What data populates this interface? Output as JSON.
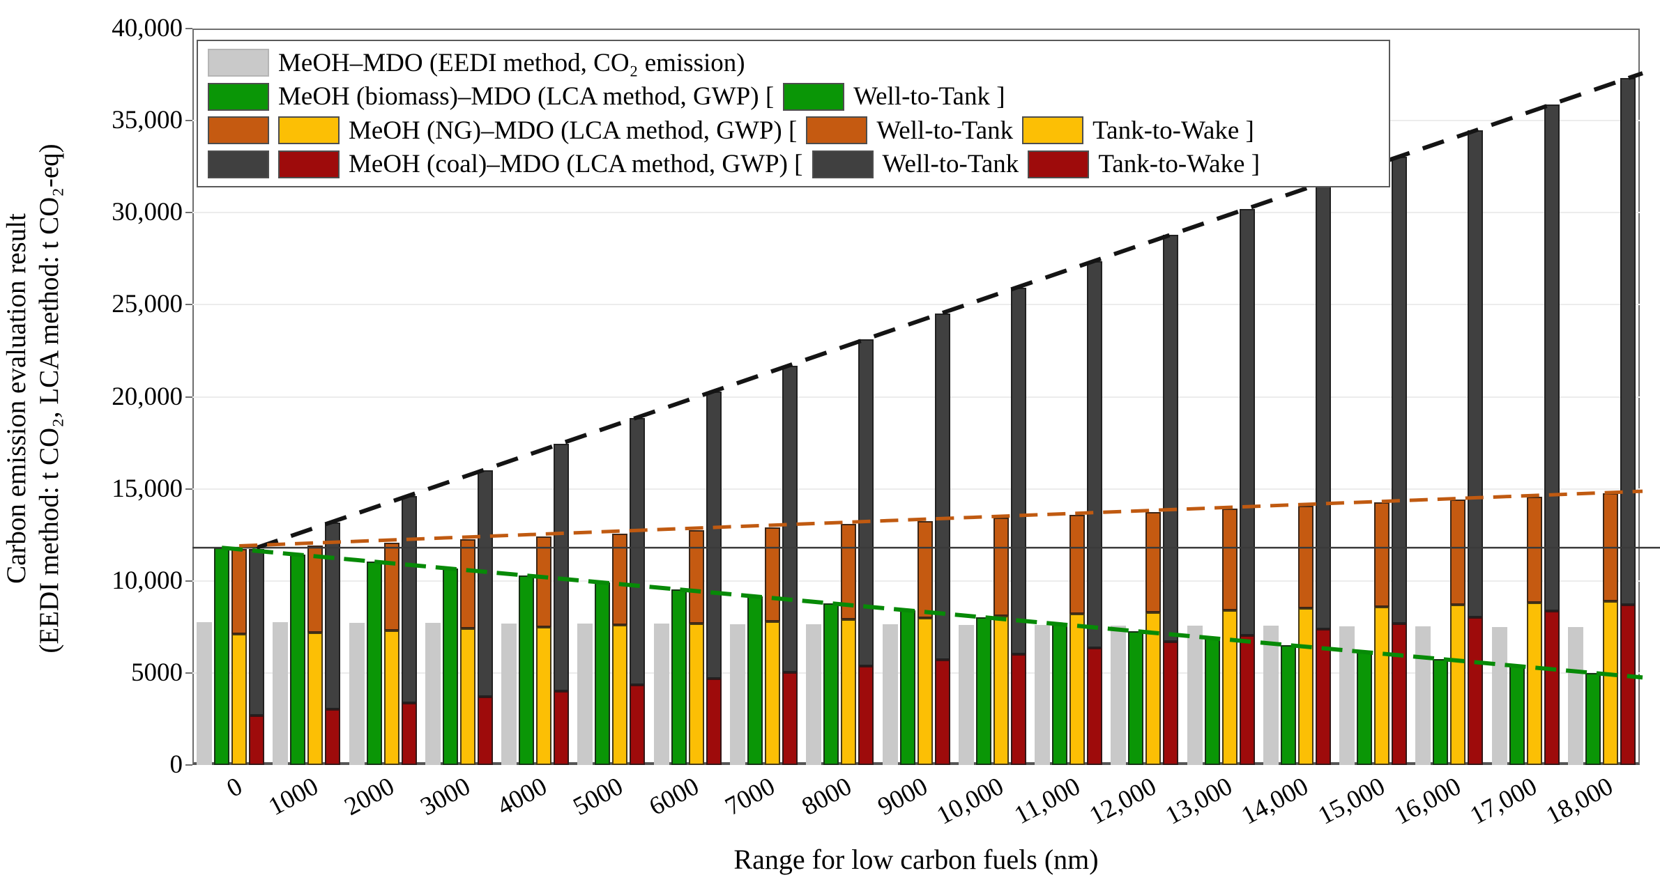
{
  "colors": {
    "eedi": "#c9c9c9",
    "biomass": "#0a9606",
    "ng_wtt": "#c55a11",
    "ng_ttw": "#fcbf05",
    "coal_wtt": "#404040",
    "coal_ttw": "#9e0b0b",
    "trend_coal": "#141414",
    "trend_ng": "#c05a11",
    "trend_biomass": "#078a07",
    "reference": "#3a3a3a",
    "grid": "#ececec",
    "border": "#6e6e6e"
  },
  "legend": {
    "row1": {
      "label": "MeOH–MDO (EEDI method, CO₂ emission)"
    },
    "row2": {
      "label": "MeOH (biomass)–MDO (LCA method, GWP) [",
      "wtt": "Well-to-Tank ]"
    },
    "row3": {
      "label": "MeOH (NG)–MDO (LCA method, GWP) [",
      "wtt": "Well-to-Tank",
      "ttw": "Tank-to-Wake ]"
    },
    "row4": {
      "label": "MeOH (coal)–MDO (LCA method, GWP) [",
      "wtt": "Well-to-Tank",
      "ttw": "Tank-to-Wake ]"
    }
  },
  "chart_data": {
    "type": "bar",
    "title": "",
    "xlabel": "Range for low carbon fuels (nm)",
    "ylabel_line1": "Carbon emission evaluation result",
    "ylabel_line2": "(EEDI method: t CO₂, LCA method: t CO₂-eq)",
    "ylim": [
      0,
      40000
    ],
    "y_tick_values": [
      0,
      5000,
      10000,
      15000,
      20000,
      25000,
      30000,
      35000,
      40000
    ],
    "y_tick_labels": [
      "0",
      "5000",
      "10,000",
      "15,000",
      "20,000",
      "25,000",
      "30,000",
      "35,000",
      "40,000"
    ],
    "x": [
      0,
      1000,
      2000,
      3000,
      4000,
      5000,
      6000,
      7000,
      8000,
      9000,
      10000,
      11000,
      12000,
      13000,
      14000,
      15000,
      16000,
      17000,
      18000
    ],
    "x_tick_labels": [
      "0",
      "1000",
      "2000",
      "3000",
      "4000",
      "5000",
      "6000",
      "7000",
      "8000",
      "9000",
      "10,000",
      "11,000",
      "12,000",
      "13,000",
      "14,000",
      "15,000",
      "16,000",
      "17,000",
      "18,000"
    ],
    "series": [
      {
        "name": "MeOH–MDO (EEDI method, CO₂ emission)",
        "role": "eedi",
        "stack": "none",
        "values": [
          7750,
          7740,
          7720,
          7710,
          7690,
          7680,
          7670,
          7650,
          7640,
          7630,
          7610,
          7600,
          7580,
          7570,
          7560,
          7540,
          7530,
          7510,
          7500
        ]
      },
      {
        "name": "MeOH (biomass)–MDO Well-to-Tank",
        "role": "biomass",
        "stack": "none",
        "values": [
          11800,
          11420,
          11040,
          10670,
          10290,
          9910,
          9530,
          9160,
          8780,
          8400,
          8020,
          7640,
          7270,
          6890,
          6510,
          6130,
          5760,
          5380,
          5000
        ]
      },
      {
        "name": "MeOH (NG)–MDO Tank-to-Wake",
        "role": "ng_ttw",
        "stack": "ng-bottom",
        "values": [
          7100,
          7200,
          7300,
          7400,
          7500,
          7600,
          7700,
          7800,
          7900,
          8000,
          8100,
          8200,
          8300,
          8400,
          8500,
          8600,
          8700,
          8800,
          8900
        ]
      },
      {
        "name": "MeOH (NG)–MDO Well-to-Tank",
        "role": "ng_wtt",
        "stack": "ng-top",
        "values": [
          4650,
          4720,
          4780,
          4850,
          4920,
          4980,
          5050,
          5120,
          5180,
          5250,
          5320,
          5380,
          5450,
          5520,
          5580,
          5650,
          5720,
          5780,
          5850
        ]
      },
      {
        "name": "MeOH (coal)–MDO Tank-to-Wake",
        "role": "coal_ttw",
        "stack": "coal-bottom",
        "values": [
          2700,
          3030,
          3370,
          3700,
          4030,
          4370,
          4700,
          5030,
          5370,
          5700,
          6030,
          6370,
          6700,
          7030,
          7370,
          7700,
          8030,
          8370,
          8700
        ]
      },
      {
        "name": "MeOH (coal)–MDO Well-to-Tank",
        "role": "coal_wtt",
        "stack": "coal-top",
        "values": [
          9050,
          10140,
          11220,
          12310,
          13400,
          14480,
          15570,
          16660,
          17740,
          18830,
          19910,
          20990,
          22080,
          23170,
          24250,
          25340,
          26430,
          27510,
          28600
        ]
      }
    ],
    "trend_lines": [
      {
        "name": "coal-total",
        "start": 11800,
        "end": 37300,
        "column": 3,
        "color_key": "trend_coal",
        "dash": "32 20",
        "width": 6
      },
      {
        "name": "ng-total",
        "start": 11900,
        "end": 14800,
        "column": 2,
        "color_key": "trend_ng",
        "dash": "26 14",
        "width": 5
      },
      {
        "name": "biomass-total",
        "start": 11800,
        "end": 5000,
        "column": 1,
        "color_key": "trend_biomass",
        "dash": "30 14",
        "width": 6
      }
    ],
    "reference_line": 11800,
    "legend_position": "top-left",
    "grid": "horizontal"
  }
}
